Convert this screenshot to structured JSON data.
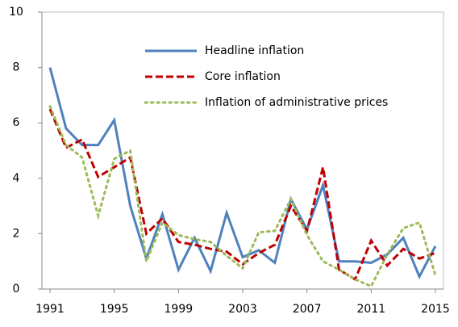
{
  "chart_data": {
    "type": "line",
    "x": [
      1991,
      1992,
      1993,
      1994,
      1995,
      1996,
      1997,
      1998,
      1999,
      2000,
      2001,
      2002,
      2003,
      2004,
      2005,
      2006,
      2007,
      2008,
      2009,
      2010,
      2011,
      2012,
      2013,
      2014,
      2015
    ],
    "series": [
      {
        "name": "Headline inflation",
        "color": "#4f81bd",
        "dash": "solid",
        "values": [
          8.0,
          5.8,
          5.2,
          5.2,
          6.1,
          3.0,
          1.1,
          2.7,
          0.7,
          1.85,
          0.65,
          2.75,
          1.15,
          1.4,
          0.95,
          3.25,
          2.15,
          3.75,
          1.0,
          1.0,
          0.95,
          1.25,
          1.85,
          0.45,
          1.55
        ]
      },
      {
        "name": "Core inflation",
        "color": "#c00000",
        "dash": "dashed",
        "values": [
          6.5,
          5.1,
          5.4,
          4.05,
          4.4,
          4.75,
          2.0,
          2.55,
          1.7,
          1.6,
          1.45,
          1.35,
          0.9,
          1.3,
          1.6,
          3.0,
          2.1,
          4.4,
          0.7,
          0.35,
          1.75,
          0.85,
          1.45,
          1.1,
          1.3
        ]
      },
      {
        "name": "Inflation of administrative prices",
        "color": "#9bbb59",
        "dash": "dotted",
        "values": [
          6.6,
          5.2,
          4.75,
          2.65,
          4.7,
          5.0,
          1.0,
          2.4,
          1.95,
          1.8,
          1.7,
          1.2,
          0.75,
          2.05,
          2.1,
          3.25,
          1.95,
          1.0,
          0.7,
          0.35,
          0.1,
          1.25,
          2.2,
          2.4,
          0.5
        ]
      }
    ],
    "xlim": [
      1991,
      2015
    ],
    "xticks": [
      1991,
      1995,
      1999,
      2003,
      2007,
      2011,
      2015
    ],
    "ylim": [
      0,
      10
    ],
    "yticks": [
      0,
      2,
      4,
      6,
      8,
      10
    ],
    "grid": false,
    "legend": "top-right"
  }
}
